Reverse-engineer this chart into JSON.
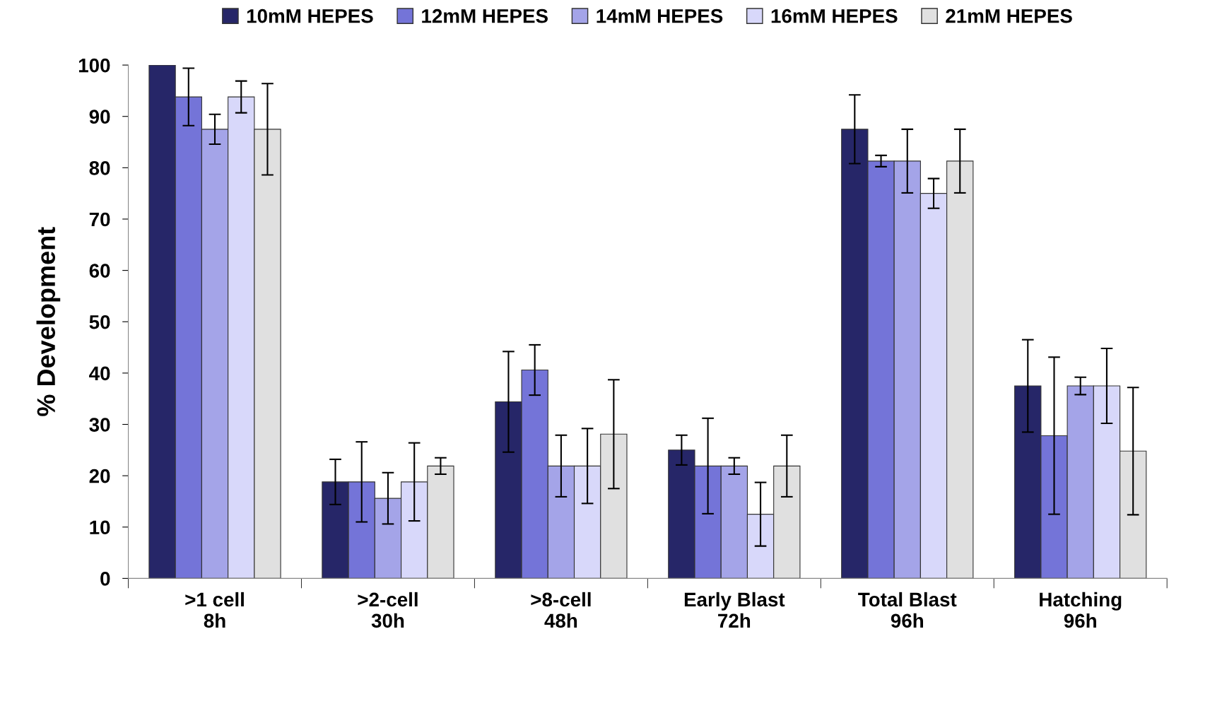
{
  "chart_data": {
    "type": "bar",
    "ylabel": "% Development",
    "categories": [
      ">1 cell\n8h",
      ">2-cell\n30h",
      ">8-cell\n48h",
      "Early Blast\n72h",
      "Total Blast\n96h",
      "Hatching\n96h"
    ],
    "series": [
      {
        "name": "10mM HEPES",
        "color": "#262668",
        "values": [
          100,
          18.8,
          34.4,
          25,
          87.5,
          37.5
        ],
        "errors": [
          null,
          4.4,
          9.8,
          2.9,
          6.7,
          9
        ]
      },
      {
        "name": "12mM HEPES",
        "color": "#7474d8",
        "values": [
          93.8,
          18.8,
          40.6,
          21.9,
          81.3,
          27.8
        ],
        "errors": [
          5.6,
          7.8,
          4.9,
          9.3,
          1.1,
          15.3
        ]
      },
      {
        "name": "14mM HEPES",
        "color": "#a4a4e8",
        "values": [
          87.5,
          15.6,
          21.9,
          21.9,
          81.3,
          37.5
        ],
        "errors": [
          2.9,
          5,
          6,
          1.6,
          6.2,
          1.7
        ]
      },
      {
        "name": "16mM HEPES",
        "color": "#d8d8fa",
        "values": [
          93.8,
          18.8,
          21.9,
          12.5,
          75,
          37.5
        ],
        "errors": [
          3.1,
          7.6,
          7.3,
          6.2,
          2.9,
          7.3
        ]
      },
      {
        "name": "21mM HEPES",
        "color": "#e0e0e0",
        "values": [
          87.5,
          21.9,
          28.1,
          21.9,
          81.3,
          24.8
        ],
        "errors": [
          8.9,
          1.6,
          10.6,
          6,
          6.2,
          12.4
        ]
      }
    ],
    "ylim": [
      0,
      100
    ],
    "yticks": [
      0,
      10,
      20,
      30,
      40,
      50,
      60,
      70,
      80,
      90,
      100
    ],
    "legend": "top",
    "grid": false
  }
}
